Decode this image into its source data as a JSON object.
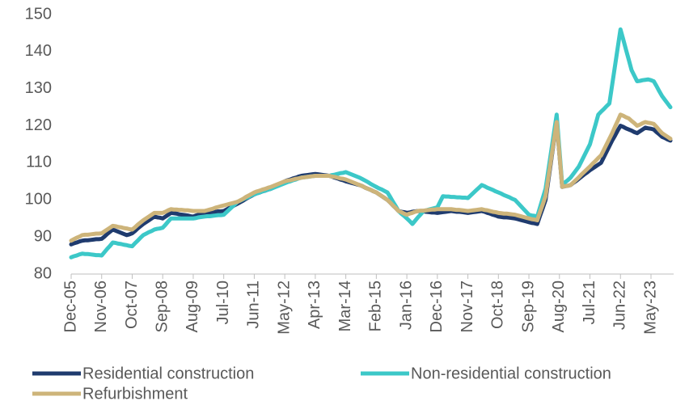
{
  "chart_data": {
    "type": "line",
    "categories": [
      "Dec-05",
      null,
      null,
      null,
      null,
      null,
      null,
      null,
      null,
      null,
      null,
      "Nov-06",
      null,
      null,
      null,
      null,
      null,
      null,
      null,
      null,
      null,
      null,
      "Oct-07",
      null,
      null,
      null,
      null,
      null,
      null,
      null,
      null,
      null,
      null,
      "Sep-08",
      null,
      null,
      null,
      null,
      null,
      null,
      null,
      null,
      null,
      null,
      "Aug-09",
      null,
      null,
      null,
      null,
      null,
      null,
      null,
      null,
      null,
      null,
      "Jul-10",
      null,
      null,
      null,
      null,
      null,
      null,
      null,
      null,
      null,
      null,
      "Jun-11",
      null,
      null,
      null,
      null,
      null,
      null,
      null,
      null,
      null,
      null,
      "May-12",
      null,
      null,
      null,
      null,
      null,
      null,
      null,
      null,
      null,
      null,
      "Apr-13",
      null,
      null,
      null,
      null,
      null,
      null,
      null,
      null,
      null,
      null,
      "Mar-14",
      null,
      null,
      null,
      null,
      null,
      null,
      null,
      null,
      null,
      null,
      "Feb-15",
      null,
      null,
      null,
      null,
      null,
      null,
      null,
      null,
      null,
      null,
      "Jan-16",
      null,
      null,
      null,
      null,
      null,
      null,
      null,
      null,
      null,
      null,
      "Dec-16",
      null,
      null,
      null,
      null,
      null,
      null,
      null,
      null,
      null,
      null,
      "Nov-17",
      null,
      null,
      null,
      null,
      null,
      null,
      null,
      null,
      null,
      null,
      "Oct-18",
      null,
      null,
      null,
      null,
      null,
      null,
      null,
      null,
      null,
      null,
      "Sep-19",
      null,
      null,
      null,
      null,
      null,
      null,
      null,
      null,
      null,
      null,
      "Aug-20",
      null,
      null,
      null,
      null,
      null,
      null,
      null,
      null,
      null,
      null,
      "Jul-21",
      null,
      null,
      null,
      null,
      null,
      null,
      null,
      null,
      null,
      null,
      "Jun-22",
      null,
      null,
      null,
      null,
      null,
      null,
      null,
      null,
      null,
      null,
      "May-23",
      null,
      null,
      null,
      null,
      null,
      null,
      null
    ],
    "series": [
      {
        "name": "Residential construction",
        "color": "#1f3b6e",
        "values": [
          88,
          88.3,
          88.5,
          88.8,
          89,
          89.1,
          89.1,
          89.2,
          89.3,
          89.4,
          89.4,
          89.5,
          90.1,
          90.8,
          91.4,
          92,
          91.7,
          91.4,
          91.1,
          90.8,
          90.5,
          90.7,
          91,
          91.6,
          92.3,
          92.9,
          93.5,
          94,
          94.5,
          95,
          95.5,
          95.3,
          95.2,
          95,
          95.5,
          96,
          96.5,
          96.4,
          96.3,
          96.1,
          96,
          95.9,
          95.8,
          95.6,
          95.5,
          95.8,
          96,
          96.3,
          96.5,
          96.6,
          96.6,
          96.7,
          96.8,
          96.9,
          96.9,
          97,
          97.4,
          97.8,
          98.2,
          98.6,
          99,
          99.4,
          99.8,
          100.3,
          100.7,
          101.1,
          101.5,
          101.8,
          102,
          102.3,
          102.5,
          102.8,
          103,
          103.4,
          103.8,
          104.2,
          104.6,
          105,
          105.3,
          105.5,
          105.8,
          106,
          106.3,
          106.5,
          106.6,
          106.7,
          106.8,
          106.9,
          107,
          106.9,
          106.8,
          106.7,
          106.6,
          106.5,
          106.3,
          106,
          105.8,
          105.5,
          105.3,
          105,
          104.8,
          104.6,
          104.4,
          104.2,
          104,
          103.7,
          103.3,
          103,
          102.7,
          102.3,
          102,
          101.5,
          101,
          100.5,
          100,
          99.3,
          98.5,
          97.8,
          97,
          96.8,
          96.7,
          96.5,
          96.6,
          96.8,
          96.9,
          97,
          96.9,
          96.9,
          96.8,
          96.7,
          96.6,
          96.6,
          96.5,
          96.6,
          96.7,
          96.8,
          96.9,
          97,
          96.9,
          96.8,
          96.8,
          96.7,
          96.6,
          96.5,
          96.6,
          96.7,
          96.8,
          96.9,
          97,
          96.8,
          96.5,
          96.3,
          96,
          95.8,
          95.5,
          95.4,
          95.3,
          95.3,
          95.2,
          95.1,
          95,
          94.8,
          94.6,
          94.4,
          94.2,
          94,
          93.8,
          93.7,
          93.5,
          95.7,
          97.8,
          100,
          105.3,
          110.5,
          115.8,
          121,
          112.3,
          103.5,
          103.7,
          103.8,
          104,
          104.6,
          105.1,
          105.7,
          106.3,
          106.9,
          107.4,
          108,
          108.5,
          109,
          109.5,
          110,
          111.5,
          113,
          114.5,
          116,
          117.3,
          118.7,
          120,
          119.7,
          119.3,
          119,
          118.7,
          118.3,
          118,
          118.5,
          119,
          119.5,
          119.3,
          119.2,
          119,
          118.3,
          117.7,
          117,
          116.7,
          116.3,
          116
        ]
      },
      {
        "name": "Non-residential construction",
        "color": "#3cc8c8",
        "values": [
          84.5,
          84.8,
          85,
          85.3,
          85.5,
          85.4,
          85.4,
          85.3,
          85.2,
          85.1,
          85.1,
          85,
          85.9,
          86.8,
          87.6,
          88.5,
          88.4,
          88.2,
          88.1,
          87.9,
          87.8,
          87.6,
          87.5,
          88.3,
          89,
          89.8,
          90.5,
          90.9,
          91.3,
          91.6,
          92,
          92.2,
          92.3,
          92.5,
          93.3,
          94.2,
          95,
          95,
          95,
          95,
          95,
          95,
          95,
          95,
          95,
          95.1,
          95.3,
          95.4,
          95.5,
          95.6,
          95.6,
          95.7,
          95.8,
          95.9,
          95.9,
          96,
          96.7,
          97.4,
          98.1,
          98.8,
          99.5,
          99.8,
          100.2,
          100.5,
          100.8,
          101.2,
          101.5,
          101.8,
          102,
          102.3,
          102.5,
          102.8,
          103,
          103.3,
          103.6,
          103.9,
          104.2,
          104.5,
          104.8,
          105,
          105.3,
          105.5,
          105.8,
          106,
          106.1,
          106.2,
          106.3,
          106.4,
          106.5,
          106.5,
          106.5,
          106.5,
          106.5,
          106.5,
          106.7,
          106.8,
          107,
          107.2,
          107.3,
          107.5,
          107.2,
          106.9,
          106.6,
          106.3,
          106,
          105.6,
          105.2,
          104.8,
          104.3,
          103.9,
          103.5,
          103.1,
          102.8,
          102.4,
          102,
          100.8,
          99.5,
          98.3,
          97,
          96.3,
          95.7,
          95,
          94.3,
          93.5,
          94.4,
          95.3,
          96.1,
          97,
          97.2,
          97.4,
          97.6,
          97.8,
          98,
          99.5,
          101,
          100.9,
          100.9,
          100.8,
          100.8,
          100.7,
          100.7,
          100.6,
          100.6,
          100.5,
          101.2,
          101.9,
          102.6,
          103.3,
          104,
          103.7,
          103.3,
          103,
          102.7,
          102.3,
          102,
          101.7,
          101.3,
          101,
          100.7,
          100.3,
          100,
          99.2,
          98.4,
          97.6,
          96.8,
          96,
          95.8,
          95.7,
          95.5,
          98,
          100.5,
          103,
          108,
          113,
          118,
          123,
          113.5,
          104,
          104.7,
          105.3,
          106,
          107,
          108,
          109,
          110.5,
          112,
          113.5,
          115,
          117.7,
          120.3,
          123,
          123.8,
          124.5,
          125.3,
          126,
          131,
          136,
          141,
          146,
          143.3,
          140.5,
          137.8,
          135,
          133.5,
          132,
          132.1,
          132.3,
          132.4,
          132.5,
          132.3,
          132,
          130.7,
          129.3,
          128,
          127,
          126,
          125
        ]
      },
      {
        "name": "Refurbishment",
        "color": "#cdb47a",
        "values": [
          89,
          89.4,
          89.8,
          90.1,
          90.5,
          90.6,
          90.6,
          90.7,
          90.8,
          90.9,
          90.9,
          91,
          91.5,
          92,
          92.5,
          93,
          92.9,
          92.7,
          92.6,
          92.4,
          92.3,
          92.1,
          92,
          92.6,
          93.3,
          93.9,
          94.5,
          95,
          95.5,
          96,
          96.5,
          96.5,
          96.5,
          96.5,
          96.8,
          97.2,
          97.5,
          97.4,
          97.4,
          97.3,
          97.3,
          97.2,
          97.2,
          97.1,
          97,
          97,
          97,
          97,
          97,
          97.2,
          97.4,
          97.6,
          97.9,
          98.1,
          98.3,
          98.5,
          98.7,
          98.9,
          99.1,
          99.3,
          99.5,
          99.9,
          100.3,
          100.8,
          101.2,
          101.6,
          102,
          102.3,
          102.5,
          102.8,
          103,
          103.3,
          103.5,
          103.8,
          104.1,
          104.4,
          104.7,
          105,
          105.2,
          105.3,
          105.5,
          105.7,
          105.8,
          106,
          106.1,
          106.2,
          106.3,
          106.4,
          106.5,
          106.5,
          106.5,
          106.5,
          106.5,
          106.5,
          106.3,
          106.2,
          106,
          105.8,
          105.7,
          105.5,
          105.2,
          104.9,
          104.6,
          104.3,
          104,
          103.7,
          103.3,
          103,
          102.7,
          102.3,
          102,
          101.5,
          101,
          100.5,
          100,
          99.3,
          98.5,
          97.8,
          97,
          96.7,
          96.3,
          96,
          96.3,
          96.5,
          96.8,
          97,
          97.1,
          97.1,
          97.2,
          97.3,
          97.4,
          97.4,
          97.5,
          97.5,
          97.5,
          97.5,
          97.5,
          97.5,
          97.4,
          97.3,
          97.3,
          97.2,
          97.1,
          97,
          97.1,
          97.2,
          97.3,
          97.4,
          97.5,
          97.3,
          97.2,
          97,
          96.8,
          96.7,
          96.5,
          96.4,
          96.3,
          96.3,
          96.2,
          96.1,
          96,
          95.8,
          95.6,
          95.4,
          95.2,
          95,
          94.8,
          94.7,
          94.5,
          96.7,
          98.8,
          101,
          106,
          111,
          116,
          121,
          112.3,
          103.5,
          103.7,
          103.8,
          104,
          104.7,
          105.4,
          106.1,
          106.9,
          107.6,
          108.3,
          109,
          109.8,
          110.5,
          111.3,
          112,
          113.5,
          115,
          116.5,
          118,
          119.7,
          121.3,
          123,
          122.7,
          122.3,
          122,
          121.3,
          120.7,
          120,
          120.3,
          120.7,
          121,
          120.8,
          120.7,
          120.5,
          119.7,
          118.8,
          118,
          117.5,
          117,
          116.5
        ]
      }
    ],
    "ylim": [
      80,
      150
    ],
    "yticks": [
      80,
      90,
      100,
      110,
      120,
      130,
      140,
      150
    ],
    "grid": false,
    "legend": "bottom"
  }
}
